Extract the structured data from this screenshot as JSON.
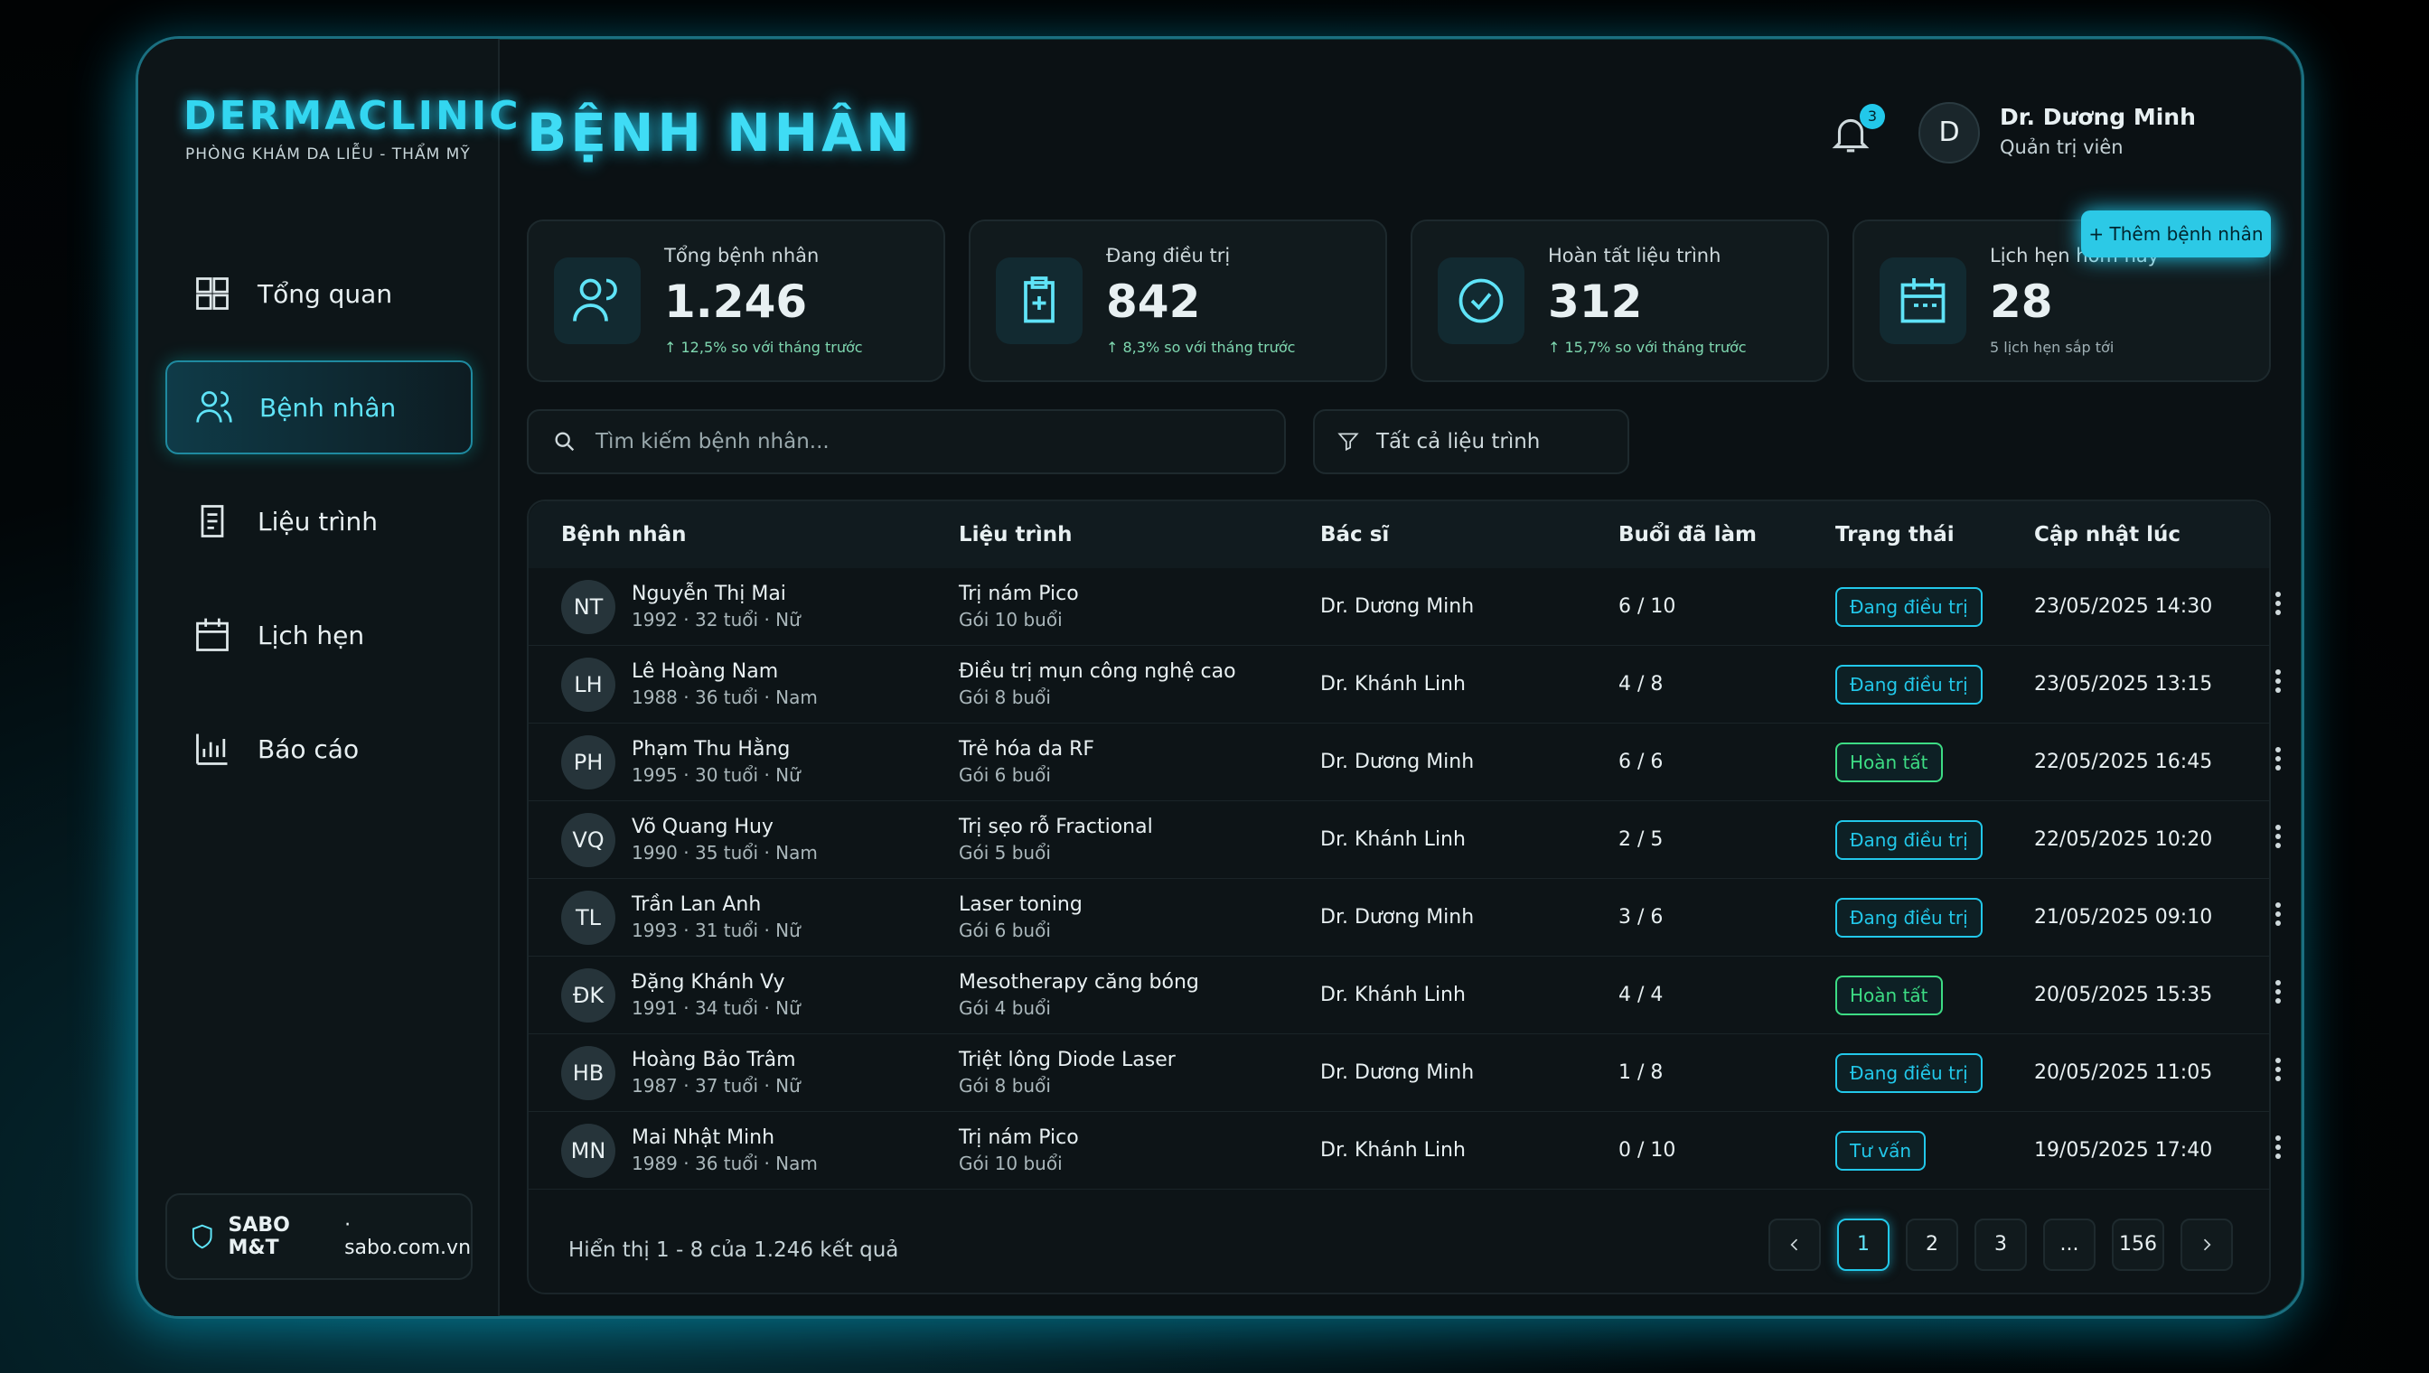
{
  "brand": {
    "name": "DERMACLINIC",
    "tagline": "PHÒNG KHÁM DA LIỄU - THẨM MỸ"
  },
  "nav": [
    "Tổng quan",
    "Bệnh nhân",
    "Liệu trình",
    "Lịch hẹn",
    "Báo cáo"
  ],
  "sidebar_footer": {
    "brand": "SABO M&T",
    "site": "· sabo.com.vn"
  },
  "header": {
    "title": "BỆNH NHÂN",
    "notifications": "3",
    "user": {
      "initial": "D",
      "name": "Dr. Dương Minh",
      "role": "Quản trị viên"
    },
    "add_button": "+ Thêm bệnh nhân"
  },
  "stats": [
    {
      "label": "Tổng bệnh nhân",
      "value": "1.246",
      "note": "↑ 12,5% so với tháng trước"
    },
    {
      "label": "Đang điều trị",
      "value": "842",
      "note": "↑ 8,3% so với tháng trước"
    },
    {
      "label": "Hoàn tất liệu trình",
      "value": "312",
      "note": "↑ 15,7% so với tháng trước"
    },
    {
      "label": "Lịch hẹn hôm nay",
      "value": "28",
      "note": "5 lịch hẹn sắp tới"
    }
  ],
  "search": {
    "placeholder": "Tìm kiếm bệnh nhân...",
    "filter": "Tất cả liệu trình"
  },
  "table": {
    "columns": [
      "Bệnh nhân",
      "Liệu trình",
      "Bác sĩ",
      "Buổi đã làm",
      "Trạng thái",
      "Cập nhật lúc"
    ],
    "rows": [
      {
        "initials": "NT",
        "name": "Nguyễn Thị Mai",
        "meta": "1992 · 32 tuổi · Nữ",
        "treatment": "Trị nám Pico",
        "package": "Gói 10 buổi",
        "doctor": "Dr. Dương Minh",
        "sessions": "6 / 10",
        "status": "Đang điều trị",
        "status_color": "#22c8ea",
        "updated": "23/05/2025 14:30"
      },
      {
        "initials": "LH",
        "name": "Lê Hoàng Nam",
        "meta": "1988 · 36 tuổi · Nam",
        "treatment": "Điều trị mụn công nghệ cao",
        "package": "Gói 8 buổi",
        "doctor": "Dr. Khánh Linh",
        "sessions": "4 / 8",
        "status": "Đang điều trị",
        "status_color": "#22c8ea",
        "updated": "23/05/2025 13:15"
      },
      {
        "initials": "PH",
        "name": "Phạm Thu Hằng",
        "meta": "1995 · 30 tuổi · Nữ",
        "treatment": "Trẻ hóa da RF",
        "package": "Gói 6 buổi",
        "doctor": "Dr. Dương Minh",
        "sessions": "6 / 6",
        "status": "Hoàn tất",
        "status_color": "#3ddc84",
        "updated": "22/05/2025 16:45"
      },
      {
        "initials": "VQ",
        "name": "Võ Quang Huy",
        "meta": "1990 · 35 tuổi · Nam",
        "treatment": "Trị sẹo rỗ Fractional",
        "package": "Gói 5 buổi",
        "doctor": "Dr. Khánh Linh",
        "sessions": "2 / 5",
        "status": "Đang điều trị",
        "status_color": "#22c8ea",
        "updated": "22/05/2025 10:20"
      },
      {
        "initials": "TL",
        "name": "Trần Lan Anh",
        "meta": "1993 · 31 tuổi · Nữ",
        "treatment": "Laser toning",
        "package": "Gói 6 buổi",
        "doctor": "Dr. Dương Minh",
        "sessions": "3 / 6",
        "status": "Đang điều trị",
        "status_color": "#22c8ea",
        "updated": "21/05/2025 09:10"
      },
      {
        "initials": "ĐK",
        "name": "Đặng Khánh Vy",
        "meta": "1991 · 34 tuổi · Nữ",
        "treatment": "Mesotherapy căng bóng",
        "package": "Gói 4 buổi",
        "doctor": "Dr. Khánh Linh",
        "sessions": "4 / 4",
        "status": "Hoàn tất",
        "status_color": "#3ddc84",
        "updated": "20/05/2025 15:35"
      },
      {
        "initials": "HB",
        "name": "Hoàng Bảo Trâm",
        "meta": "1987 · 37 tuổi · Nữ",
        "treatment": "Triệt lông Diode Laser",
        "package": "Gói 8 buổi",
        "doctor": "Dr. Dương Minh",
        "sessions": "1 / 8",
        "status": "Đang điều trị",
        "status_color": "#22c8ea",
        "updated": "20/05/2025 11:05"
      },
      {
        "initials": "MN",
        "name": "Mai Nhật Minh",
        "meta": "1989 · 36 tuổi · Nam",
        "treatment": "Trị nám Pico",
        "package": "Gói 10 buổi",
        "doctor": "Dr. Khánh Linh",
        "sessions": "0 / 10",
        "status": "Tư vấn",
        "status_color": "#22c8ea",
        "updated": "19/05/2025 17:40"
      }
    ]
  },
  "footer": {
    "summary": "Hiển thị 1 - 8 của 1.246 kết quả",
    "pages": [
      "1",
      "2",
      "3",
      "...",
      "156"
    ]
  }
}
